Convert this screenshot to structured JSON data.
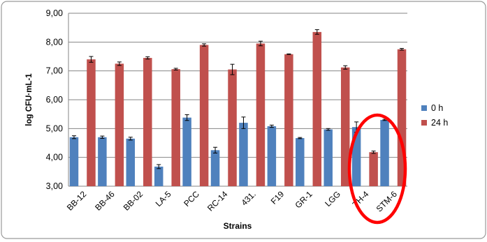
{
  "chart_data": {
    "type": "bar",
    "title": "",
    "xlabel": "Strains",
    "ylabel": "log CFU·mL-1",
    "ylim": [
      3,
      9
    ],
    "yticks": [
      "3,00",
      "4,00",
      "5,00",
      "6,00",
      "7,00",
      "8,00",
      "9,00"
    ],
    "grid": true,
    "legend_position": "right",
    "categories": [
      "BB-12",
      "BB-46",
      "BB-02",
      "LA-5",
      "PCC",
      "RC-14",
      "431.",
      "F19",
      "GR-1",
      "LGG",
      "TH-4",
      "STM-6"
    ],
    "series": [
      {
        "name": "0 h",
        "color": "#4f81bd",
        "values": [
          4.7,
          4.7,
          4.65,
          3.68,
          5.38,
          4.25,
          5.2,
          5.08,
          4.67,
          4.97,
          5.05,
          5.3
        ],
        "errors": [
          0.05,
          0.04,
          0.05,
          0.07,
          0.1,
          0.1,
          0.2,
          0.04,
          0.02,
          0.03,
          0.18,
          0.02
        ]
      },
      {
        "name": "24 h",
        "color": "#c0504d",
        "values": [
          7.4,
          7.25,
          7.45,
          7.06,
          7.9,
          7.05,
          7.95,
          7.58,
          8.35,
          7.12,
          4.18,
          7.75
        ],
        "errors": [
          0.1,
          0.06,
          0.04,
          0.03,
          0.04,
          0.18,
          0.08,
          0.01,
          0.08,
          0.06,
          0.04,
          0.03
        ]
      }
    ],
    "annotation": {
      "shape": "ellipse",
      "highlights": "TH-4",
      "color": "#ff0000"
    }
  }
}
